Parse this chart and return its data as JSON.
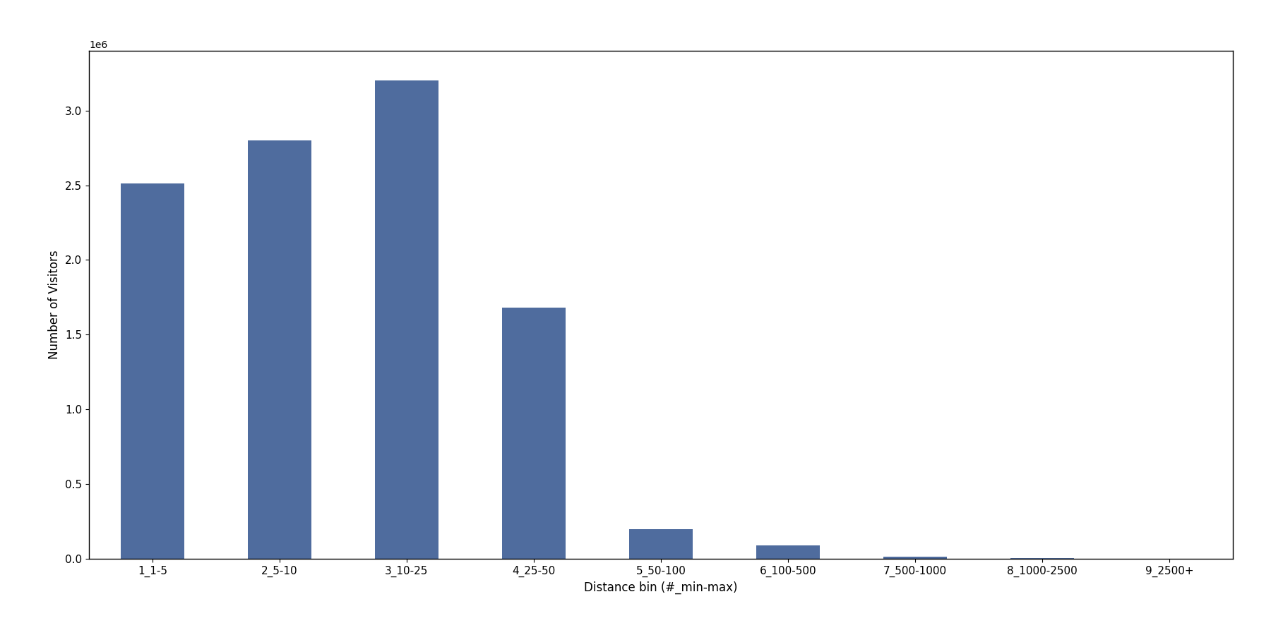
{
  "categories": [
    "1_1-5",
    "2_5-10",
    "3_10-25",
    "4_25-50",
    "5_50-100",
    "6_100-500",
    "7_500-1000",
    "8_1000-2500",
    "9_2500+"
  ],
  "values": [
    2510000,
    2800000,
    3200000,
    1680000,
    200000,
    90000,
    12000,
    5000,
    2000
  ],
  "bar_color": "#4f6c9e",
  "xlabel": "Distance bin (#_min-max)",
  "ylabel": "Number of Visitors",
  "ylim": [
    0,
    3400000
  ],
  "figsize": [
    18.0,
    9.0
  ],
  "dpi": 100,
  "bar_width": 0.5
}
